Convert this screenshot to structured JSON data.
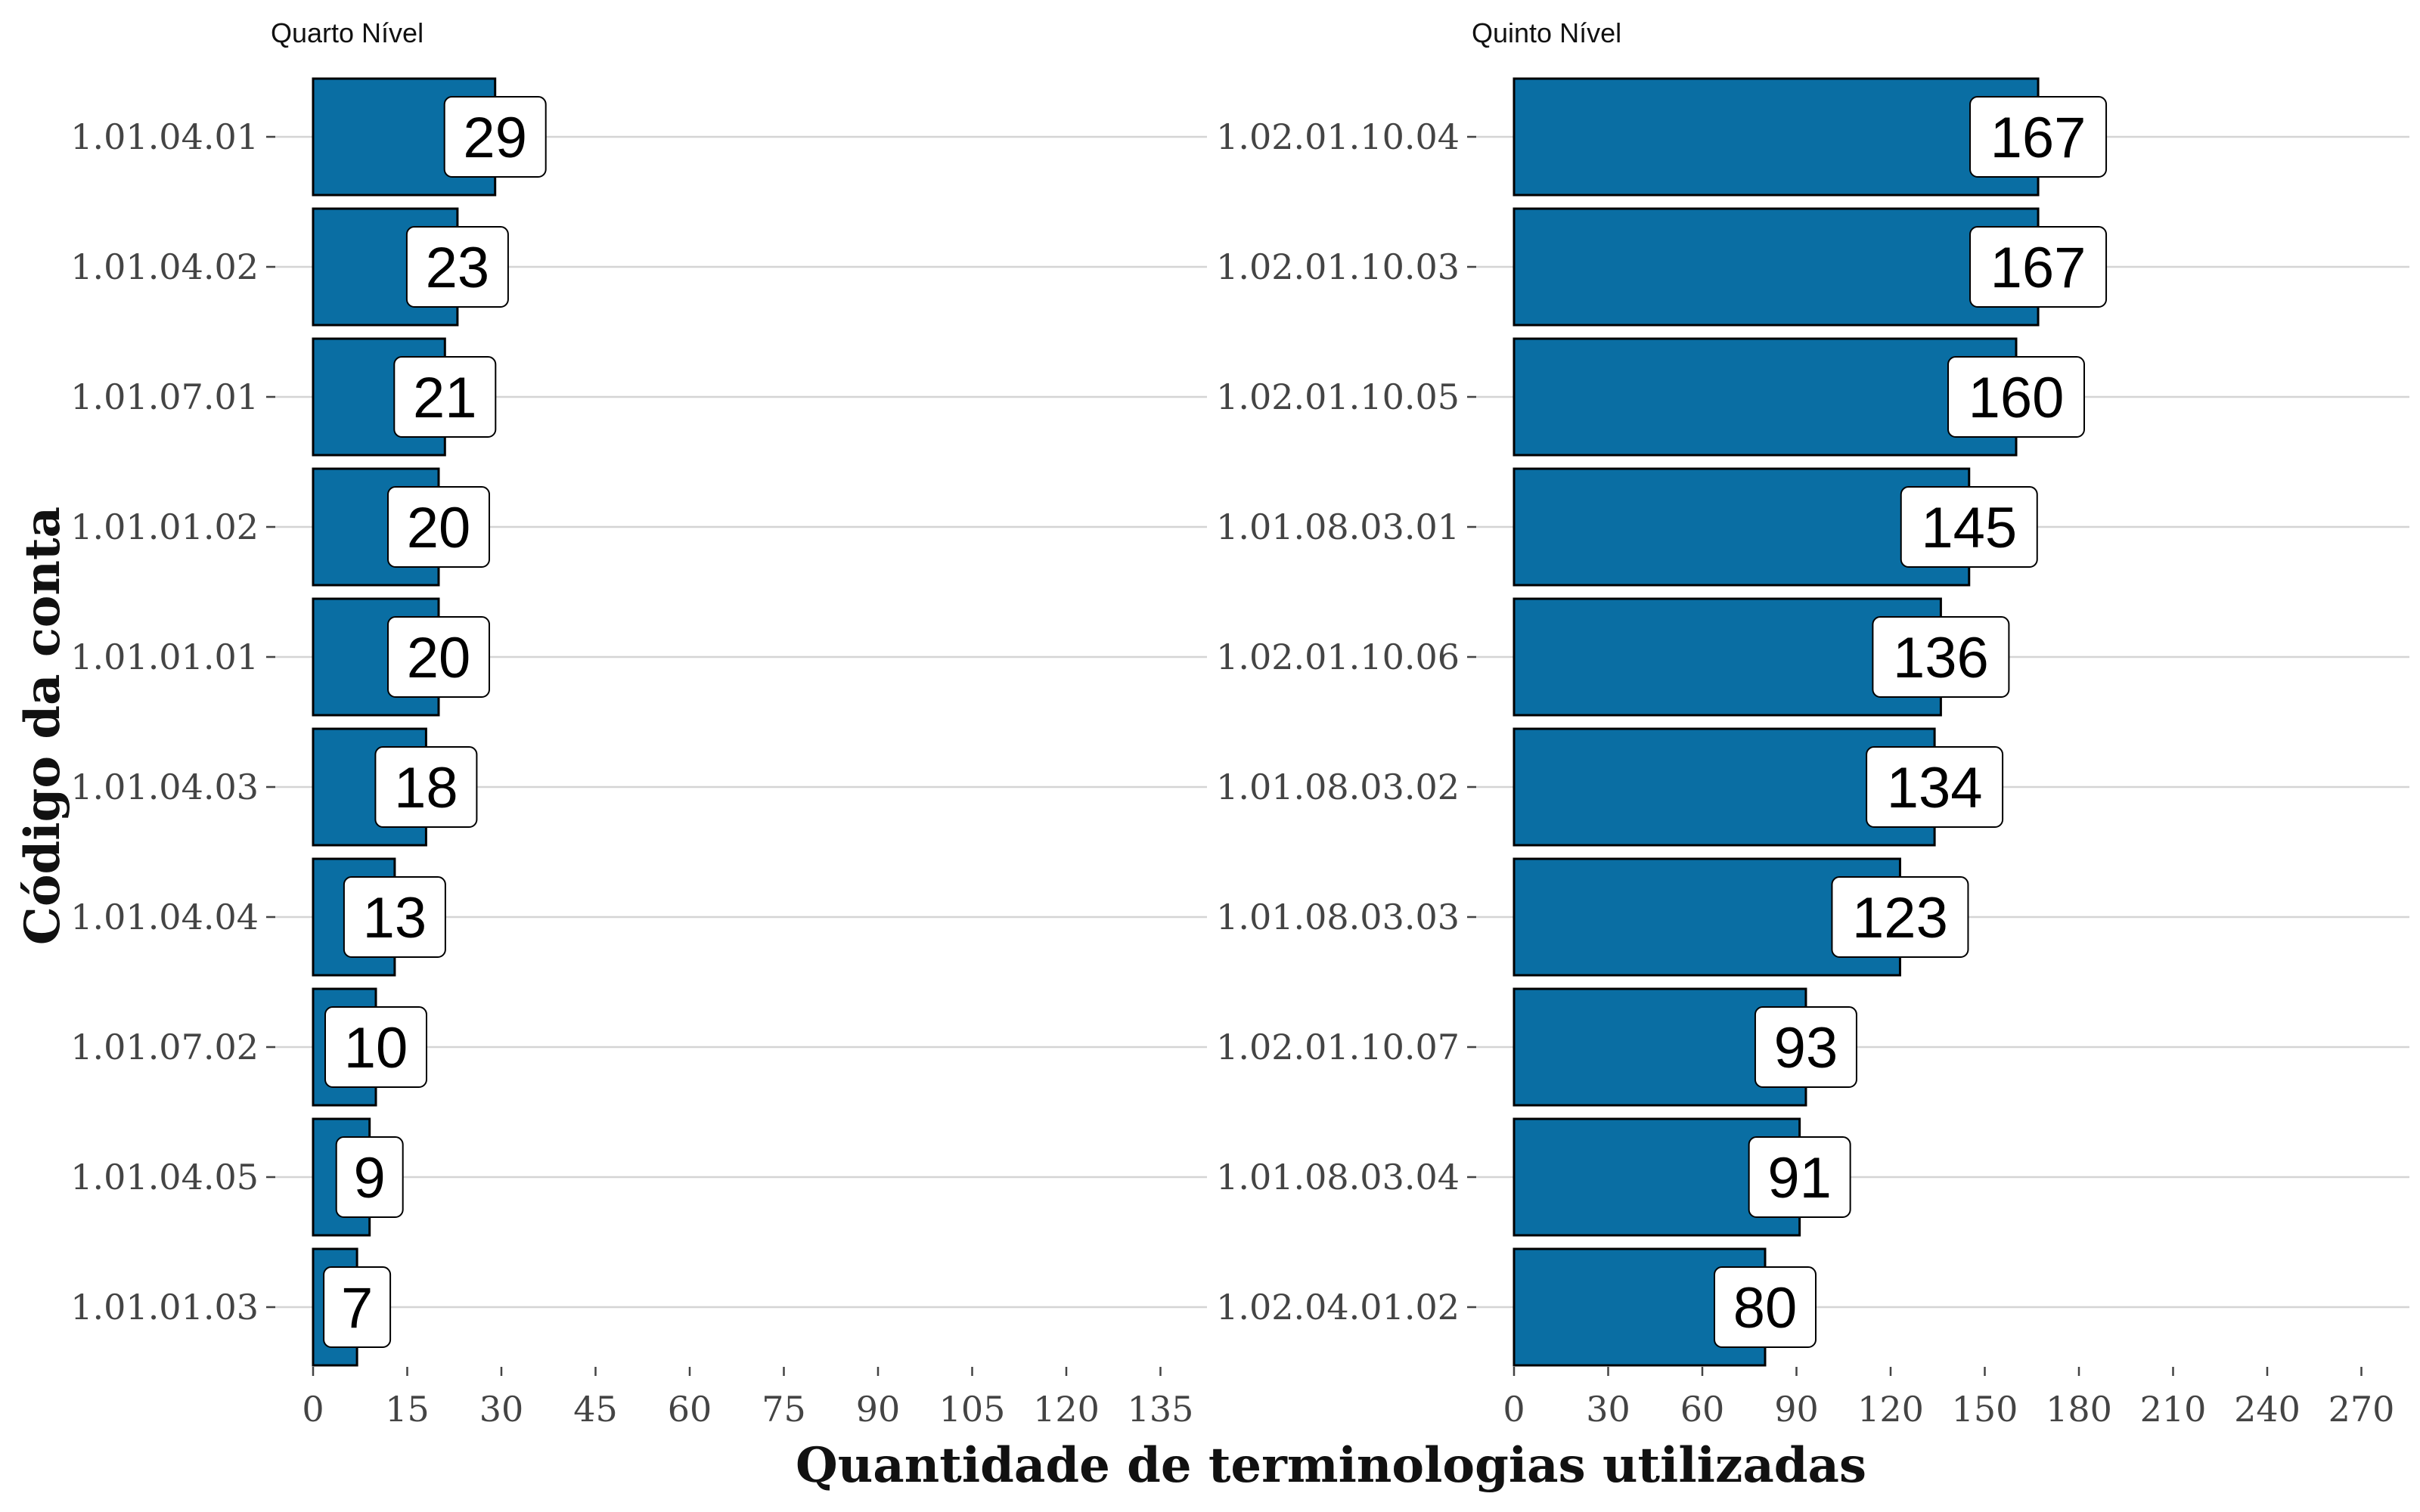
{
  "chart_data": {
    "type": "bar",
    "orientation": "horizontal",
    "xlabel": "Quantidade de terminologias utilizadas",
    "ylabel": "Código da conta",
    "bar_color": "#0a6ea3",
    "grid": true,
    "facets": [
      {
        "title": "Quarto Nível",
        "categories": [
          "1.01.04.01",
          "1.01.04.02",
          "1.01.07.01",
          "1.01.01.02",
          "1.01.01.01",
          "1.01.04.03",
          "1.01.04.04",
          "1.01.07.02",
          "1.01.04.05",
          "1.01.01.03"
        ],
        "values": [
          29,
          23,
          21,
          20,
          20,
          18,
          13,
          10,
          9,
          7
        ],
        "xlim": [
          0,
          140
        ],
        "xticks": [
          0,
          15,
          30,
          45,
          60,
          75,
          90,
          105,
          120,
          135
        ]
      },
      {
        "title": "Quinto Nível",
        "categories": [
          "1.02.01.10.04",
          "1.02.01.10.03",
          "1.02.01.10.05",
          "1.01.08.03.01",
          "1.02.01.10.06",
          "1.01.08.03.02",
          "1.01.08.03.03",
          "1.02.01.10.07",
          "1.01.08.03.04",
          "1.02.04.01.02"
        ],
        "values": [
          167,
          167,
          160,
          145,
          136,
          134,
          123,
          93,
          91,
          80
        ],
        "xlim": [
          0,
          280
        ],
        "xticks": [
          0,
          30,
          60,
          90,
          120,
          150,
          180,
          210,
          240,
          270
        ]
      }
    ]
  }
}
